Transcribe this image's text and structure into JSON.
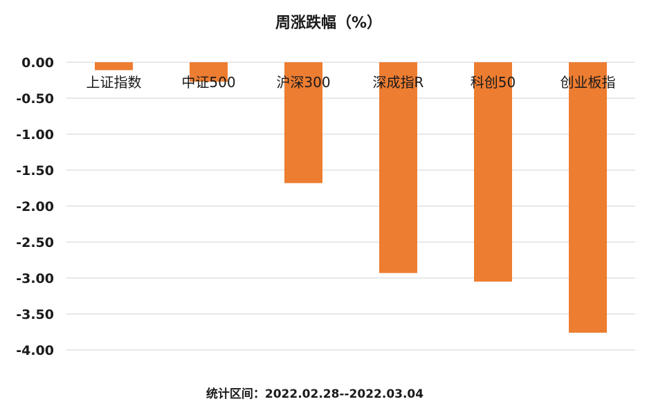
{
  "chart_data": {
    "type": "bar",
    "title": "周涨跌幅（%）",
    "categories": [
      "上证指数",
      "中证500",
      "沪深300",
      "深成指R",
      "科创50",
      "创业板指"
    ],
    "values": [
      -0.11,
      -0.27,
      -1.68,
      -2.93,
      -3.05,
      -3.76
    ],
    "ylim": [
      -4.0,
      0.0
    ],
    "yticks": [
      "0.00",
      "-0.50",
      "-1.00",
      "-1.50",
      "-2.00",
      "-2.50",
      "-3.00",
      "-3.50",
      "-4.00"
    ],
    "grid": true,
    "bar_color": "#ed7d31",
    "footnote": "统计区间：2022.02.28--2022.03.04"
  }
}
